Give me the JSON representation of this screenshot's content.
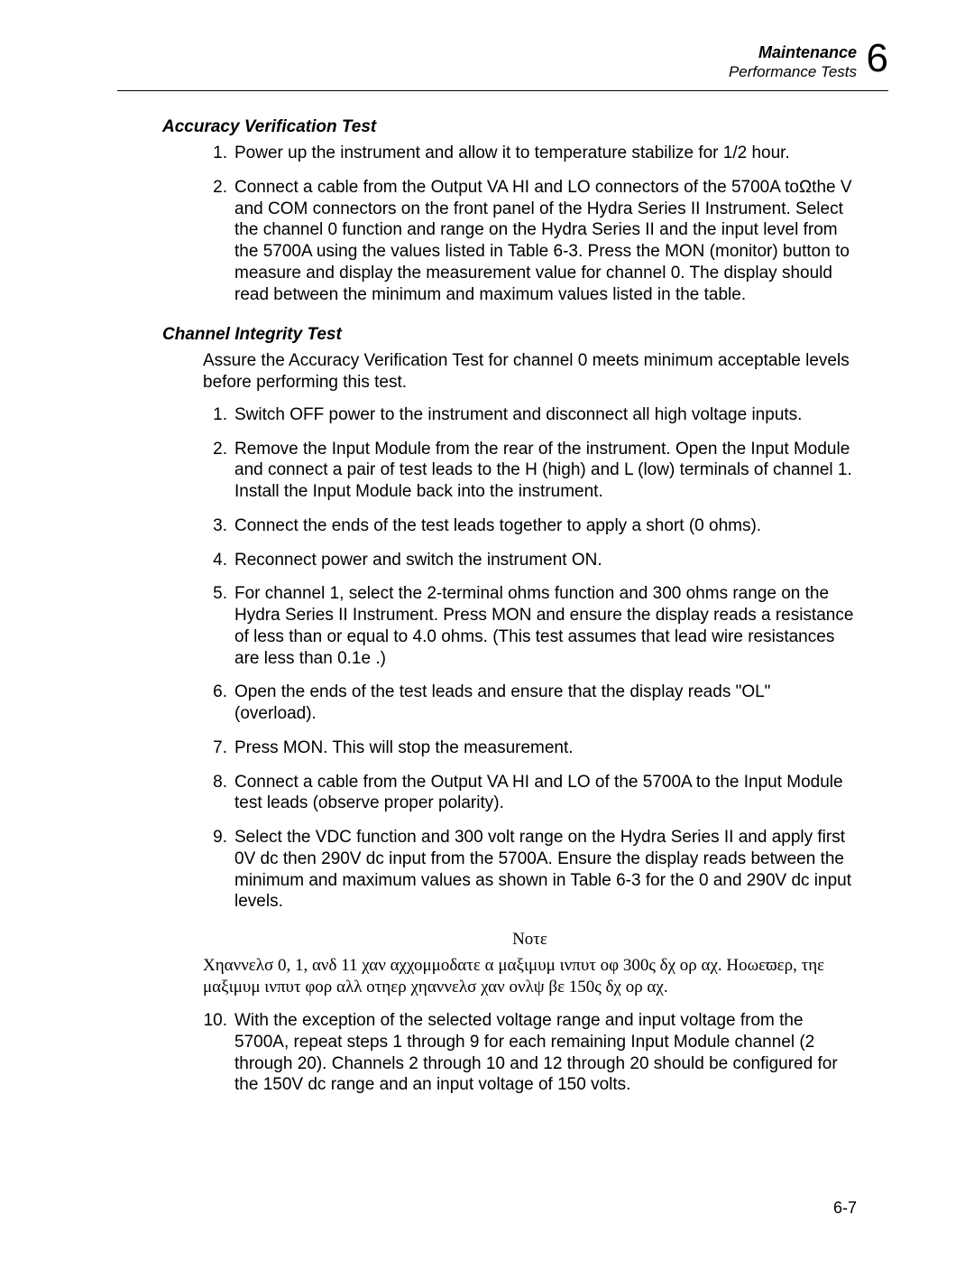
{
  "header": {
    "chapter_title": "Maintenance",
    "section_title": "Performance Tests",
    "chapter_number": "6"
  },
  "section1": {
    "title": "Accuracy Verification Test",
    "items": [
      "Power up the instrument and allow it to temperature stabilize for 1/2 hour.",
      "Connect a cable from the Output VA HI and LO connectors of the 5700A toΩthe V and COM connectors on the front panel of the Hydra Series II Instrument. Select the channel 0 function and range on the Hydra Series II and the input level from the 5700A using the values listed in Table 6-3. Press the MON (monitor) button to measure and display the measurement value for channel 0. The display should read between the minimum and maximum values listed in the table."
    ]
  },
  "section2": {
    "title": "Channel Integrity Test",
    "intro": "Assure the Accuracy Verification Test for channel 0 meets minimum acceptable levels before performing this test.",
    "items": [
      "Switch OFF power to the instrument and disconnect all high voltage inputs.",
      "Remove the Input Module from the rear of the instrument. Open the Input Module and connect a pair of test leads to the H (high) and L (low) terminals of channel 1. Install the Input Module back into the instrument.",
      "Connect the ends of the test leads together to apply a short (0 ohms).",
      "Reconnect power and switch the instrument ON.",
      "For channel 1, select the 2-terminal ohms function and 300 ohms range on the Hydra Series II Instrument. Press MON and ensure the display reads a resistance of less than or equal to 4.0 ohms. (This test assumes that lead wire resistances are less than 0.1e .)",
      "Open the ends of the test leads and ensure that the display reads \"OL\" (overload).",
      "Press MON. This will stop the measurement.",
      "Connect a cable from the Output VA HI and LO of the 5700A to the Input Module test leads (observe proper polarity).",
      "Select the VDC function and 300 volt range on the Hydra Series II and apply first 0V dc then 290V dc input from the 5700A. Ensure the display reads between the minimum and maximum values as shown in Table 6-3 for the 0 and 290V dc input levels."
    ],
    "note_label": "Νοτε",
    "note_body": "Χηαννελσ 0, 1, ανδ 11 χαν αχχομμοδατε α μαξιμυμ ινπυτ οφ 300ς δχ ορ αχ. Ηοωεϖερ, τηε μαξιμυμ ινπυτ φορ αλλ οτηερ χηαννελσ χαν ονλψ βε 150ς δχ ορ αχ.",
    "item10": "With the exception of the selected voltage range and input voltage from the 5700A, repeat steps 1 through 9 for each remaining Input Module channel (2 through 20). Channels 2 through 10 and 12 through 20 should be configured for the 150V dc range and an input voltage of 150 volts."
  },
  "footer": {
    "page_number": "6-7"
  }
}
